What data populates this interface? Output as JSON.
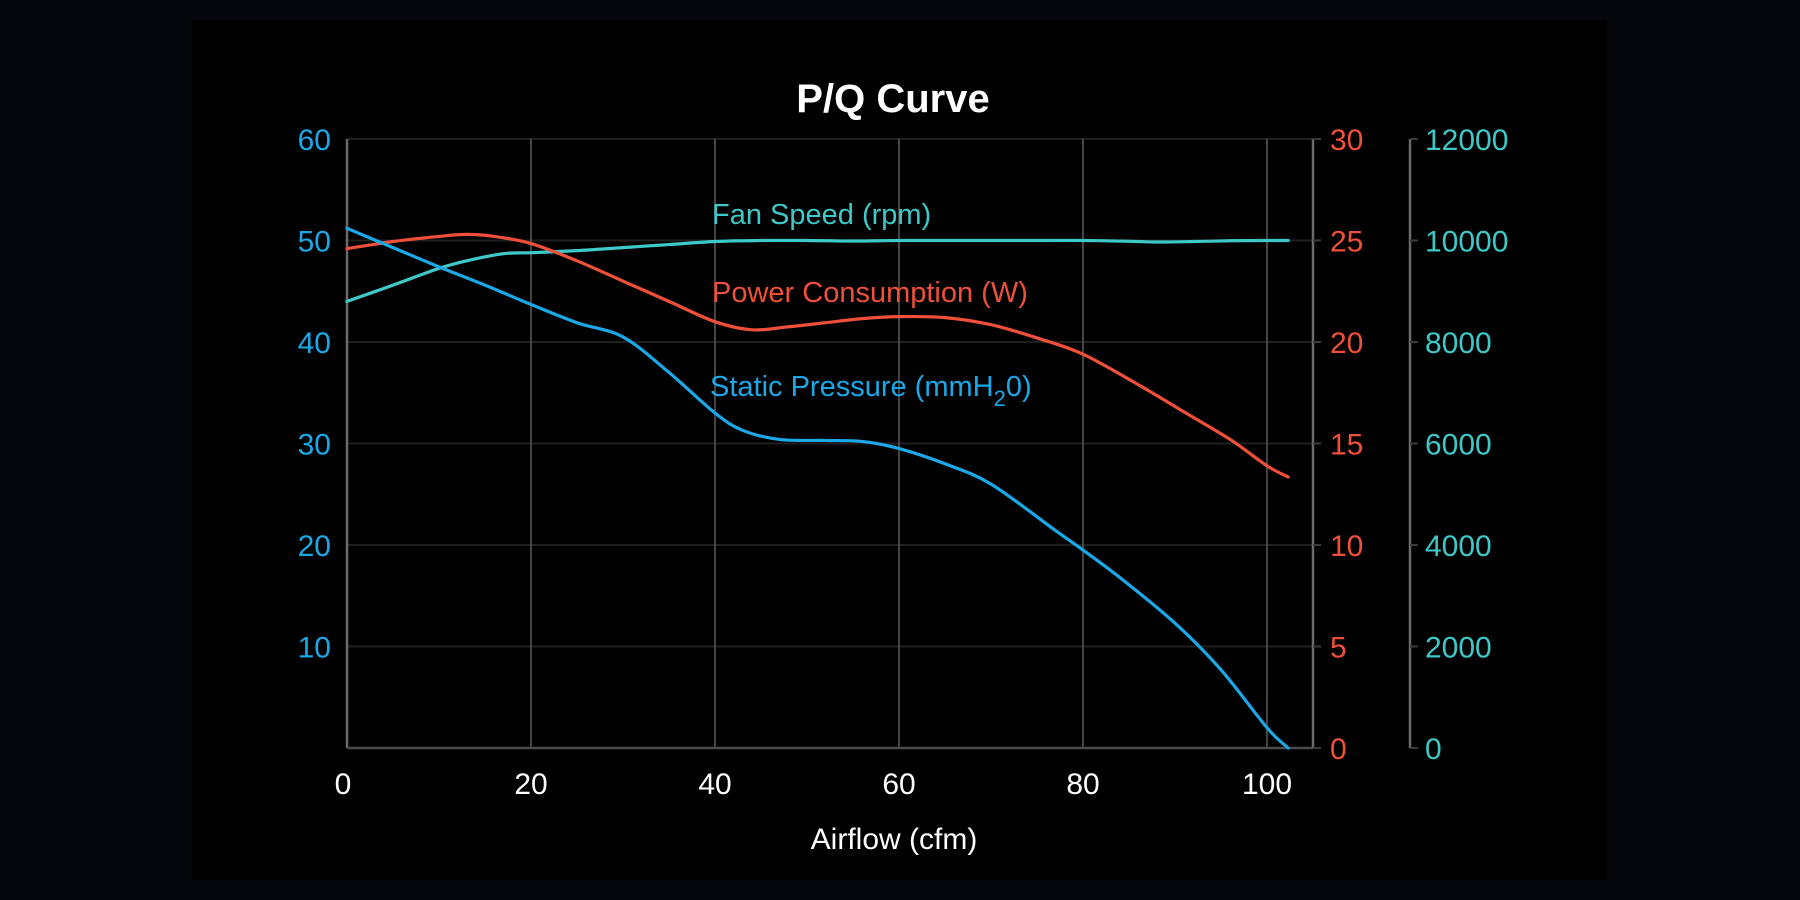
{
  "chart_data": {
    "type": "line",
    "title": "P/Q Curve",
    "xlabel": "Airflow (cfm)",
    "xlim": [
      0,
      105
    ],
    "x_ticks": [
      0,
      20,
      40,
      60,
      80,
      100
    ],
    "grid": true,
    "axes": {
      "left": {
        "series": "static_pressure",
        "ylim": [
          0,
          60
        ],
        "ticks": [
          10,
          20,
          30,
          40,
          50,
          60
        ],
        "color": "#1aa8e8"
      },
      "right": {
        "series": "power",
        "ylim": [
          0,
          30
        ],
        "ticks": [
          0,
          5,
          10,
          15,
          20,
          25,
          30
        ],
        "color": "#f0503a"
      },
      "third": {
        "series": "fan_speed",
        "ylim": [
          0,
          12000
        ],
        "ticks": [
          0,
          2000,
          4000,
          6000,
          8000,
          10000,
          12000
        ],
        "color": "#3ec8c8"
      }
    },
    "series": [
      {
        "id": "fan_speed",
        "name": "Fan Speed (rpm)",
        "axis": "third",
        "color": "#3ec8c8",
        "x": [
          0,
          5,
          10,
          13,
          17,
          20,
          25,
          30,
          35,
          40,
          45,
          50,
          55,
          60,
          65,
          70,
          75,
          80,
          85,
          88,
          92,
          96,
          100,
          102.3
        ],
        "y": [
          8800,
          9120,
          9450,
          9600,
          9740,
          9760,
          9800,
          9860,
          9920,
          9980,
          10000,
          10000,
          9990,
          10000,
          10000,
          10000,
          10000,
          10000,
          9985,
          9970,
          9980,
          9995,
          10000,
          10000
        ]
      },
      {
        "id": "power",
        "name": "Power Consumption (W)",
        "axis": "right",
        "color": "#f0503a",
        "x": [
          0,
          5,
          10,
          13,
          16,
          20,
          25,
          30,
          35,
          40,
          44,
          48,
          52,
          56,
          60,
          65,
          70,
          75,
          80,
          86,
          91,
          96,
          100,
          102.3
        ],
        "y": [
          24.6,
          24.95,
          25.2,
          25.3,
          25.2,
          24.85,
          24.0,
          23.0,
          22.0,
          21.0,
          20.6,
          20.75,
          20.95,
          21.15,
          21.25,
          21.2,
          20.85,
          20.2,
          19.4,
          17.9,
          16.55,
          15.2,
          13.9,
          13.35
        ]
      },
      {
        "id": "static_pressure",
        "name": "Static Pressure (mmH",
        "name_sub": "2",
        "name_tail": "0)",
        "axis": "left",
        "color": "#1aa8e8",
        "x": [
          0,
          5,
          10,
          15,
          20,
          25,
          30,
          35,
          40,
          43,
          47,
          52,
          56,
          60,
          65,
          70,
          76.9,
          80,
          84,
          90,
          95,
          100,
          102.3
        ],
        "y": [
          51.2,
          49.3,
          47.4,
          45.6,
          43.7,
          41.9,
          40.5,
          37.0,
          33.0,
          31.3,
          30.4,
          30.3,
          30.2,
          29.5,
          28.0,
          26.0,
          21.5,
          19.5,
          16.8,
          12.3,
          7.7,
          2.0,
          0.0
        ]
      }
    ]
  }
}
